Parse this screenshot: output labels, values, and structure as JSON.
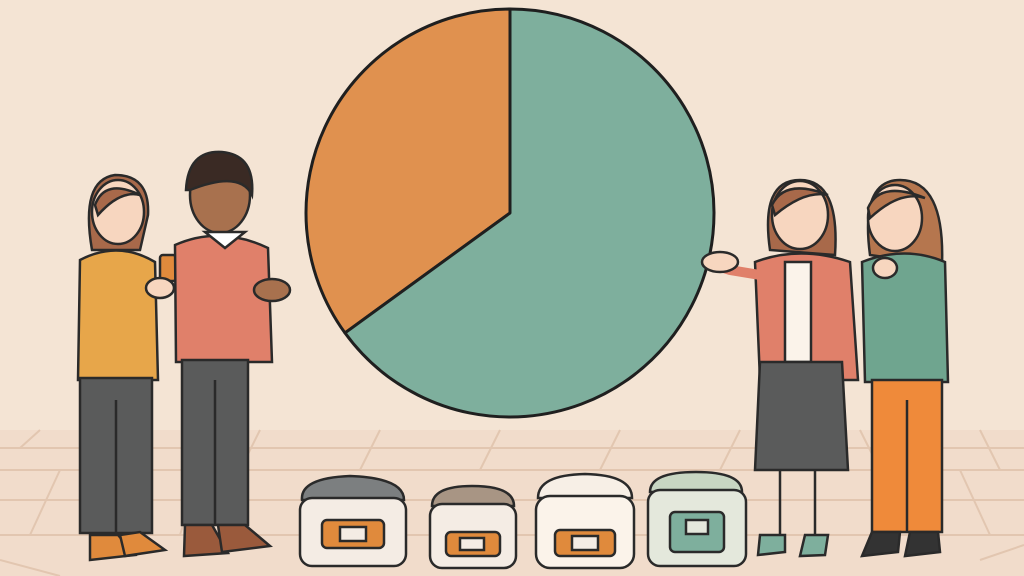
{
  "chart_data": {
    "type": "pie",
    "title": "",
    "slices": [
      {
        "value": 35,
        "color": "#e0914f"
      },
      {
        "value": 65,
        "color": "#7eaf9d"
      }
    ],
    "start_angle_deg": 0,
    "direction": "counterclockwise",
    "legend": "none",
    "data_labels": "none"
  },
  "colors": {
    "background": "#f4e4d4",
    "floor": "#f1dccb",
    "outline": "#1f1f1f"
  },
  "illustration": {
    "people_count": 4,
    "rice_cookers_count": 4
  }
}
